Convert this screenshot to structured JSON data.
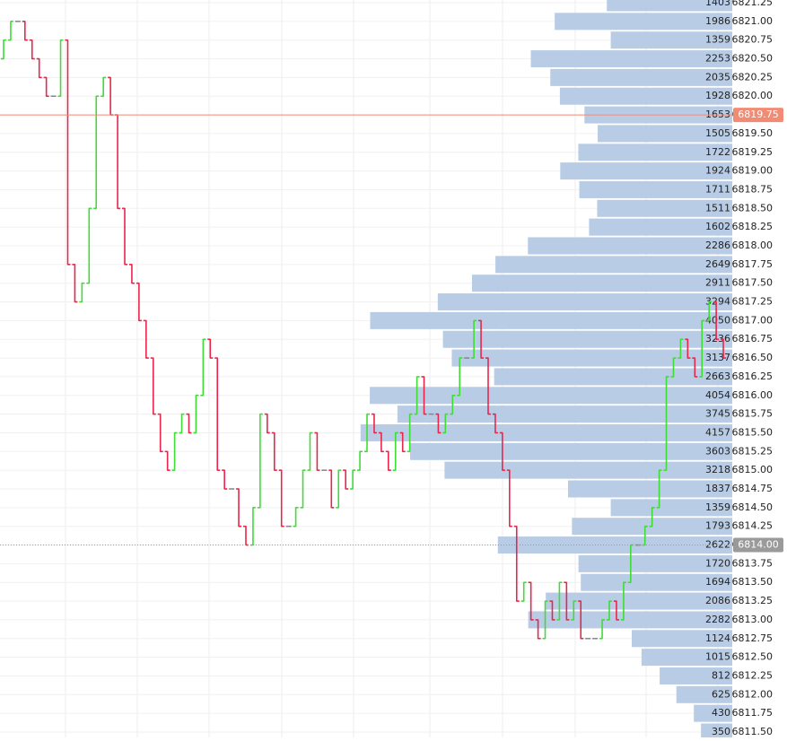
{
  "chart_data": [
    {
      "type": "ohlc",
      "ylim": [
        6811.5,
        6821.25
      ],
      "up_color": "#3fdc35",
      "down_color": "#e8264c",
      "flat_color": "#8a8a8a",
      "open": [
        6820.5,
        6820.75,
        6821.0,
        6821.0,
        6820.75,
        6820.5,
        6820.25,
        6820.0,
        6820.0,
        6820.75,
        6817.75,
        6817.25,
        6817.5,
        6818.5,
        6820.0,
        6820.25,
        6819.75,
        6818.5,
        6817.75,
        6817.5,
        6817.0,
        6816.5,
        6815.75,
        6815.25,
        6815.0,
        6815.5,
        6815.75,
        6815.5,
        6816.0,
        6816.75,
        6816.5,
        6815.0,
        6814.75,
        6814.75,
        6814.25,
        6814.0,
        6814.5,
        6815.75,
        6815.5,
        6815.0,
        6814.25,
        6814.25,
        6814.5,
        6815.0,
        6815.5,
        6815.0,
        6815.0,
        6814.5,
        6815.0,
        6814.75,
        6815.0,
        6815.25,
        6815.75,
        6815.5,
        6815.25,
        6815.0,
        6815.5,
        6815.25,
        6815.75,
        6816.25,
        6815.75,
        6815.75,
        6815.5,
        6815.75,
        6816.0,
        6816.5,
        6816.5,
        6817.0,
        6816.5,
        6815.75,
        6815.5,
        6815.0,
        6814.25,
        6813.25,
        6813.5,
        6813.0,
        6812.75,
        6813.25,
        6813.0,
        6813.5,
        6813.0,
        6813.25,
        6812.75,
        6812.75,
        6812.75,
        6813.0,
        6813.25,
        6813.0,
        6813.5,
        6814.0,
        6814.0,
        6814.25,
        6814.5,
        6815.0,
        6816.25,
        6816.5,
        6816.75,
        6816.5,
        6816.25,
        6817.0,
        6817.25,
        6816.75
      ],
      "close": [
        6820.75,
        6821.0,
        6821.0,
        6820.75,
        6820.5,
        6820.25,
        6820.0,
        6820.0,
        6820.75,
        6817.75,
        6817.25,
        6817.5,
        6818.5,
        6820.0,
        6820.25,
        6819.75,
        6818.5,
        6817.75,
        6817.5,
        6817.0,
        6816.5,
        6815.75,
        6815.25,
        6815.0,
        6815.5,
        6815.75,
        6815.5,
        6816.0,
        6816.75,
        6816.5,
        6815.0,
        6814.75,
        6814.75,
        6814.25,
        6814.0,
        6814.5,
        6815.75,
        6815.5,
        6815.0,
        6814.25,
        6814.25,
        6814.5,
        6815.0,
        6815.5,
        6815.0,
        6815.0,
        6814.5,
        6815.0,
        6814.75,
        6815.0,
        6815.25,
        6815.75,
        6815.5,
        6815.25,
        6815.0,
        6815.5,
        6815.25,
        6815.75,
        6816.25,
        6815.75,
        6815.75,
        6815.5,
        6815.75,
        6816.0,
        6816.5,
        6816.5,
        6817.0,
        6816.5,
        6815.75,
        6815.5,
        6815.0,
        6814.25,
        6813.25,
        6813.5,
        6813.0,
        6812.75,
        6813.25,
        6813.0,
        6813.5,
        6813.0,
        6813.25,
        6812.75,
        6812.75,
        6812.75,
        6813.0,
        6813.25,
        6813.0,
        6813.5,
        6814.0,
        6814.0,
        6814.25,
        6814.5,
        6815.0,
        6816.25,
        6816.5,
        6816.75,
        6816.5,
        6816.25,
        6817.0,
        6817.25,
        6816.75,
        6816.5
      ],
      "markers": [
        {
          "value": 6819.75,
          "label": "6819.75",
          "color": "#f28b74",
          "style": "solid"
        },
        {
          "value": 6814.0,
          "label": "6814.00",
          "color": "#9a9a9a",
          "style": "dotted"
        }
      ]
    },
    {
      "type": "volume-profile",
      "color": "#b9cce6",
      "xlim": [
        0,
        8190
      ],
      "categories": [
        "6821.25",
        "6821.00",
        "6820.75",
        "6820.50",
        "6820.25",
        "6820.00",
        "6819.75",
        "6819.50",
        "6819.25",
        "6819.00",
        "6818.75",
        "6818.50",
        "6818.25",
        "6818.00",
        "6817.75",
        "6817.50",
        "6817.25",
        "6817.00",
        "6816.75",
        "6816.50",
        "6816.25",
        "6816.00",
        "6815.75",
        "6815.50",
        "6815.25",
        "6815.00",
        "6814.75",
        "6814.50",
        "6814.25",
        "6814.00",
        "6813.75",
        "6813.50",
        "6813.25",
        "6813.00",
        "6812.75",
        "6812.50",
        "6812.25",
        "6812.00",
        "6811.75",
        "6811.50"
      ],
      "values": [
        1403,
        1986,
        1359,
        2253,
        2035,
        1928,
        1653,
        1505,
        1722,
        1924,
        1711,
        1511,
        1602,
        2286,
        2649,
        2911,
        3294,
        4050,
        3236,
        3137,
        2663,
        4054,
        3745,
        4157,
        3603,
        3218,
        1837,
        1359,
        1793,
        2622,
        1720,
        1694,
        2086,
        2282,
        1124,
        1015,
        812,
        625,
        430,
        350
      ]
    }
  ]
}
